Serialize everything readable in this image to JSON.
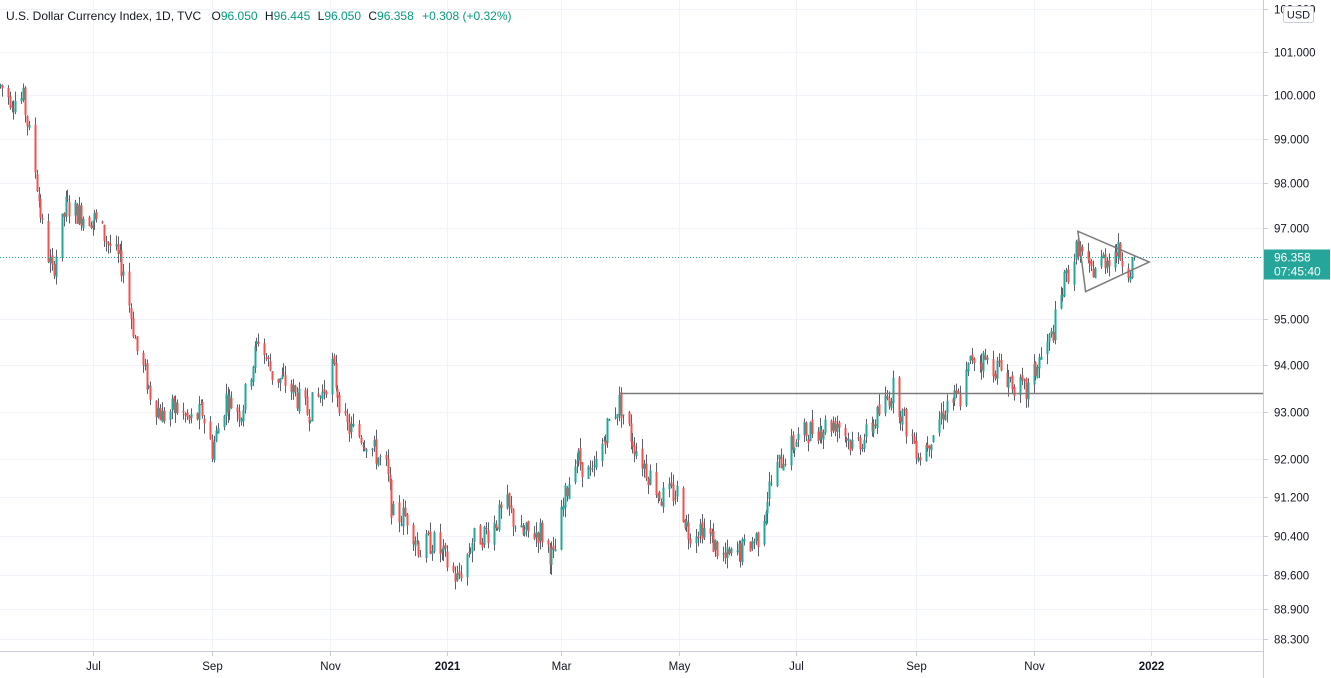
{
  "legend": {
    "symbol": "U.S. Dollar Currency Index, 1D, TVC",
    "open_label": "O",
    "open": "96.050",
    "high_label": "H",
    "high": "96.445",
    "low_label": "L",
    "low": "96.050",
    "close_label": "C",
    "close": "96.358",
    "change": "+0.308 (+0.32%)"
  },
  "price_axis": {
    "currency": "USD",
    "last_price": "96.358",
    "countdown": "07:45:40",
    "last_price_value": 96.358
  },
  "colors": {
    "up": "#26a69a",
    "down": "#ef5350",
    "wick": "#5d606b",
    "grid": "#f0f3fa",
    "label_bg": "#26a69a",
    "drawing": "#7b7b7b"
  },
  "chart_data": {
    "type": "candlestick",
    "title": "U.S. Dollar Currency Index, 1D, TVC",
    "y_scale": "log",
    "ylim": [
      88.05,
      102.2
    ],
    "xlim": [
      "2020-05-14",
      "2022-02-28"
    ],
    "y_ticks": [
      "102.000",
      "101.000",
      "100.000",
      "99.000",
      "98.000",
      "97.000",
      "95.000",
      "94.000",
      "93.000",
      "92.000",
      "91.200",
      "90.400",
      "89.600",
      "88.900",
      "88.300"
    ],
    "x_ticks": [
      {
        "label": "Jul",
        "date": "2020-07-01",
        "bold": false
      },
      {
        "label": "Sep",
        "date": "2020-09-01",
        "bold": false
      },
      {
        "label": "Nov",
        "date": "2020-11-01",
        "bold": false
      },
      {
        "label": "2021",
        "date": "2021-01-01",
        "bold": true
      },
      {
        "label": "Mar",
        "date": "2021-03-01",
        "bold": false
      },
      {
        "label": "May",
        "date": "2021-05-01",
        "bold": false
      },
      {
        "label": "Jul",
        "date": "2021-07-01",
        "bold": false
      },
      {
        "label": "Sep",
        "date": "2021-09-01",
        "bold": false
      },
      {
        "label": "Nov",
        "date": "2021-11-01",
        "bold": false
      },
      {
        "label": "2022",
        "date": "2022-01-01",
        "bold": true
      }
    ],
    "close_path": [
      [
        "2020-05-14",
        100.2
      ],
      [
        "2020-05-20",
        99.9
      ],
      [
        "2020-05-26",
        99.9
      ],
      [
        "2020-06-01",
        98.3
      ],
      [
        "2020-06-05",
        97.0
      ],
      [
        "2020-06-10",
        96.0
      ],
      [
        "2020-06-17",
        97.5
      ],
      [
        "2020-06-25",
        97.3
      ],
      [
        "2020-07-02",
        97.2
      ],
      [
        "2020-07-10",
        96.6
      ],
      [
        "2020-07-17",
        96.1
      ],
      [
        "2020-07-24",
        94.3
      ],
      [
        "2020-07-31",
        93.4
      ],
      [
        "2020-08-06",
        92.9
      ],
      [
        "2020-08-13",
        93.1
      ],
      [
        "2020-08-20",
        92.8
      ],
      [
        "2020-08-27",
        93.0
      ],
      [
        "2020-09-01",
        92.2
      ],
      [
        "2020-09-08",
        93.3
      ],
      [
        "2020-09-16",
        93.0
      ],
      [
        "2020-09-25",
        94.6
      ],
      [
        "2020-10-02",
        93.8
      ],
      [
        "2020-10-10",
        93.6
      ],
      [
        "2020-10-20",
        93.0
      ],
      [
        "2020-10-28",
        93.4
      ],
      [
        "2020-11-02",
        94.0
      ],
      [
        "2020-11-09",
        92.7
      ],
      [
        "2020-11-20",
        92.4
      ],
      [
        "2020-11-30",
        91.8
      ],
      [
        "2020-12-04",
        90.8
      ],
      [
        "2020-12-11",
        90.8
      ],
      [
        "2020-12-18",
        90.1
      ],
      [
        "2020-12-24",
        90.3
      ],
      [
        "2020-12-31",
        89.9
      ],
      [
        "2021-01-06",
        89.5
      ],
      [
        "2021-01-14",
        90.3
      ],
      [
        "2021-01-22",
        90.5
      ],
      [
        "2021-02-01",
        91.0
      ],
      [
        "2021-02-08",
        90.4
      ],
      [
        "2021-02-18",
        90.5
      ],
      [
        "2021-02-25",
        89.9
      ],
      [
        "2021-03-03",
        91.2
      ],
      [
        "2021-03-08",
        92.1
      ],
      [
        "2021-03-17",
        91.6
      ],
      [
        "2021-03-25",
        92.7
      ],
      [
        "2021-03-31",
        93.2
      ],
      [
        "2021-04-06",
        92.5
      ],
      [
        "2021-04-14",
        91.8
      ],
      [
        "2021-04-22",
        91.2
      ],
      [
        "2021-04-30",
        91.3
      ],
      [
        "2021-05-06",
        90.5
      ],
      [
        "2021-05-13",
        90.6
      ],
      [
        "2021-05-25",
        89.9
      ],
      [
        "2021-06-03",
        90.1
      ],
      [
        "2021-06-11",
        90.4
      ],
      [
        "2021-06-17",
        91.4
      ],
      [
        "2021-06-23",
        92.0
      ],
      [
        "2021-07-01",
        92.4
      ],
      [
        "2021-07-07",
        92.6
      ],
      [
        "2021-07-15",
        92.7
      ],
      [
        "2021-07-22",
        92.8
      ],
      [
        "2021-07-30",
        92.3
      ],
      [
        "2021-08-06",
        92.5
      ],
      [
        "2021-08-12",
        92.9
      ],
      [
        "2021-08-20",
        93.5
      ],
      [
        "2021-08-27",
        92.7
      ],
      [
        "2021-09-03",
        92.1
      ],
      [
        "2021-09-10",
        92.6
      ],
      [
        "2021-09-17",
        93.2
      ],
      [
        "2021-09-24",
        93.3
      ],
      [
        "2021-09-30",
        94.2
      ],
      [
        "2021-10-07",
        94.1
      ],
      [
        "2021-10-15",
        93.9
      ],
      [
        "2021-10-22",
        93.6
      ],
      [
        "2021-10-28",
        93.4
      ],
      [
        "2021-11-03",
        94.0
      ],
      [
        "2021-11-10",
        94.6
      ],
      [
        "2021-11-17",
        95.8
      ],
      [
        "2021-11-24",
        96.6
      ],
      [
        "2021-11-30",
        96.0
      ],
      [
        "2021-12-07",
        96.3
      ],
      [
        "2021-12-14",
        96.5
      ],
      [
        "2021-12-21",
        96.1
      ],
      [
        "2021-12-23",
        96.358
      ]
    ],
    "annotations": [
      {
        "type": "horizontal_line",
        "from": "2021-03-31",
        "price": 93.4
      },
      {
        "type": "triangle",
        "points": [
          [
            "2021-11-24",
            96.93
          ],
          [
            "2021-12-31",
            96.25
          ],
          [
            "2021-11-28",
            95.6
          ]
        ]
      }
    ]
  }
}
